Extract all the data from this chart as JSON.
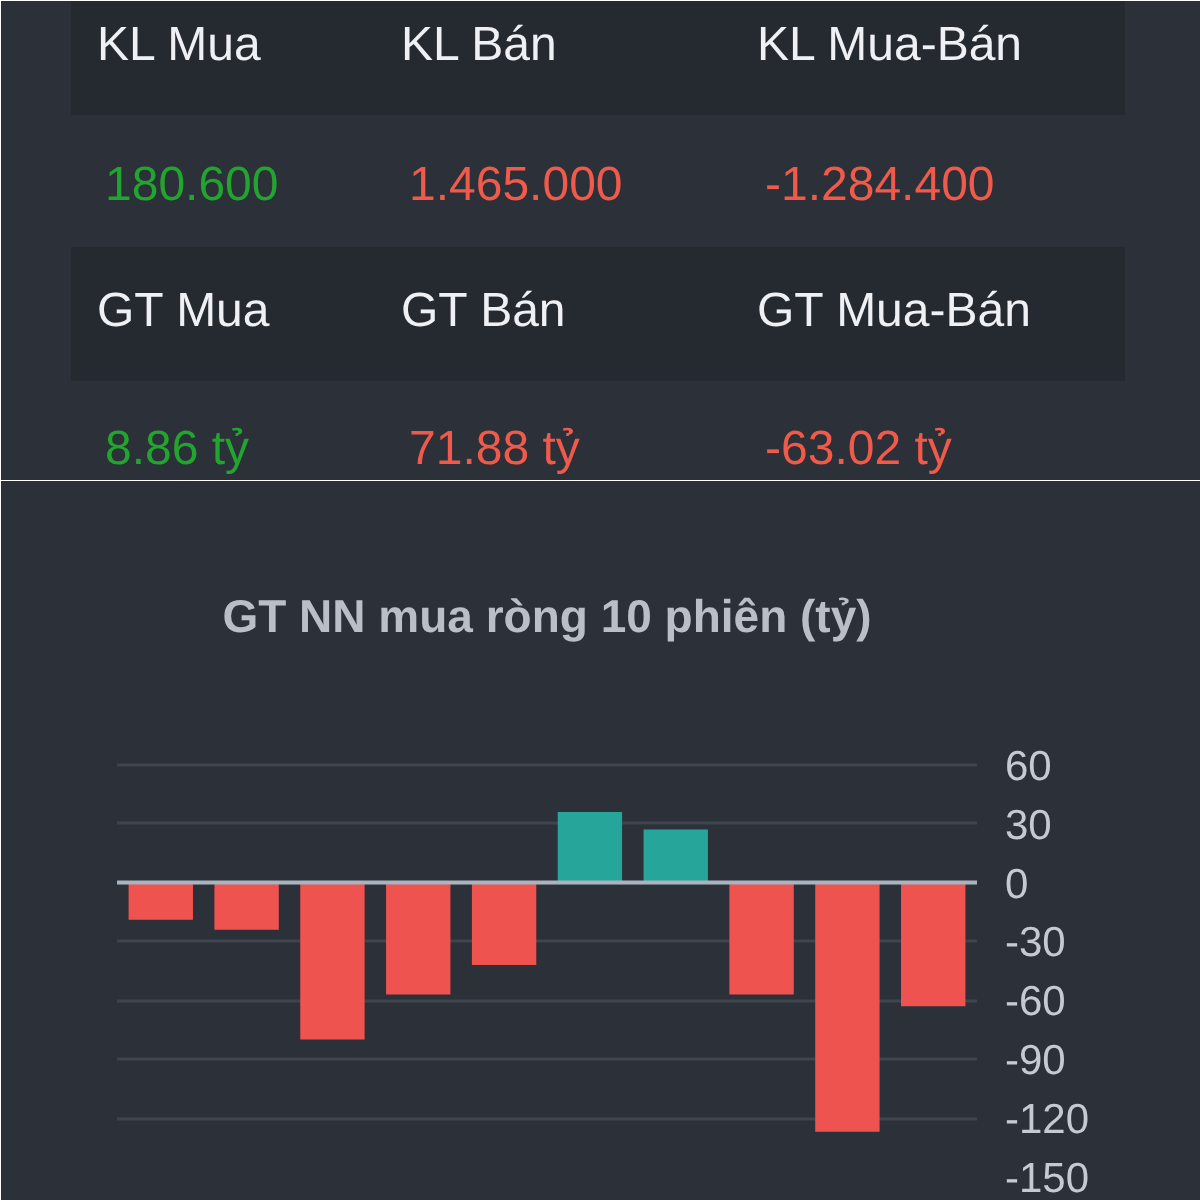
{
  "chart_data": [
    {
      "type": "other",
      "categories": [
        "KL Mua",
        "KL Bán",
        "KL Mua-Bán",
        "GT Mua",
        "GT Bán",
        "GT Mua-Bán"
      ],
      "value_labels": [
        "180.600",
        "1.465.000",
        "-1.284.400",
        "8.86 tỷ",
        "71.88 tỷ",
        "-63.02 tỷ"
      ]
    },
    {
      "type": "bar",
      "title": "GT NN mua ròng 10 phiên (tỷ)",
      "categories": [
        null,
        null,
        null,
        null,
        null,
        null,
        null,
        null,
        null,
        null
      ],
      "values": [
        -19,
        -24,
        -80,
        -57,
        -42,
        36,
        27,
        -57,
        -127,
        -63
      ],
      "colors": [
        "#ef5350",
        "#ef5350",
        "#ef5350",
        "#ef5350",
        "#ef5350",
        "#26a69a",
        "#26a69a",
        "#ef5350",
        "#ef5350",
        "#ef5350"
      ],
      "ylim": [
        -150,
        65
      ],
      "yticks": [
        60,
        30,
        0,
        -30,
        -60,
        -90,
        -120,
        -150
      ],
      "grid": "y",
      "tick_labels": "y",
      "ref_lines": [
        {
          "axis": "y",
          "value": 0,
          "color": "#aab3c0"
        }
      ]
    }
  ]
}
